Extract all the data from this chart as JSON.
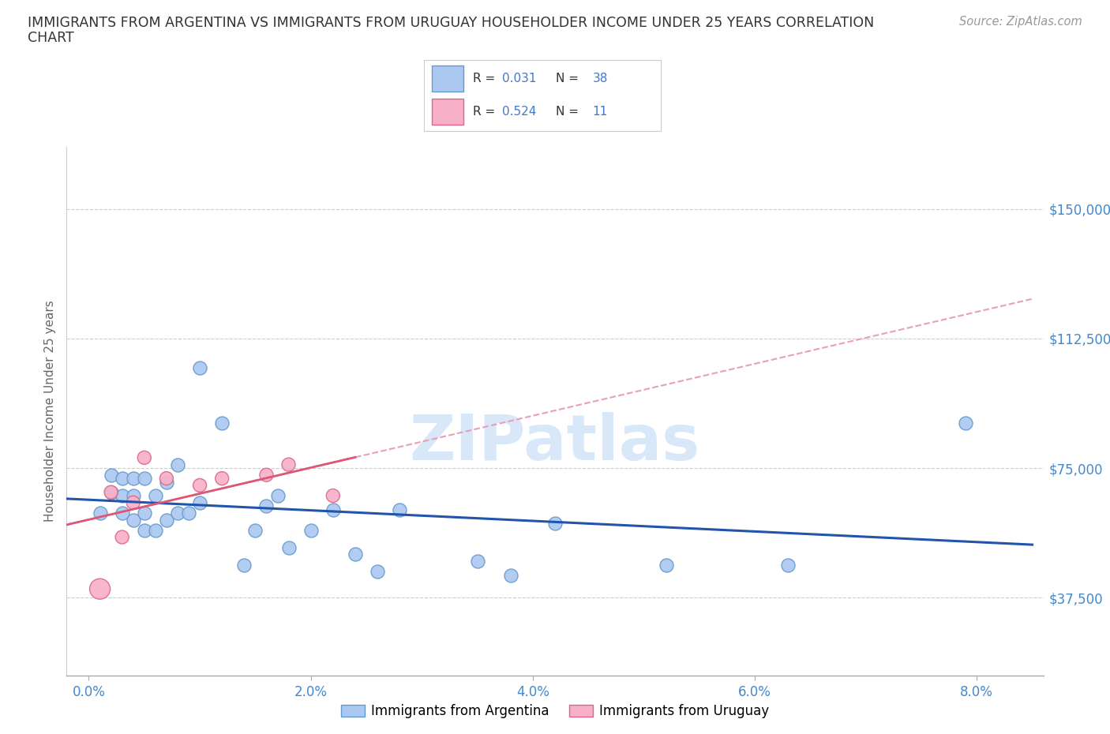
{
  "title_line1": "IMMIGRANTS FROM ARGENTINA VS IMMIGRANTS FROM URUGUAY HOUSEHOLDER INCOME UNDER 25 YEARS CORRELATION",
  "title_line2": "CHART",
  "source_text": "Source: ZipAtlas.com",
  "xlabel_ticks": [
    "0.0%",
    "2.0%",
    "4.0%",
    "6.0%",
    "8.0%"
  ],
  "xlabel_tick_vals": [
    0.0,
    0.02,
    0.04,
    0.06,
    0.08
  ],
  "ylabel": "Householder Income Under 25 years",
  "ylabel_ticks": [
    "$37,500",
    "$75,000",
    "$112,500",
    "$150,000"
  ],
  "ylabel_tick_vals": [
    37500,
    75000,
    112500,
    150000
  ],
  "ymin": 15000,
  "ymax": 168000,
  "xmin": -0.002,
  "xmax": 0.086,
  "argentina_color": "#aac8f0",
  "argentina_edge_color": "#6699cc",
  "uruguay_color": "#f8b0c8",
  "uruguay_edge_color": "#dd6688",
  "argentina_line_color": "#2255aa",
  "uruguay_solid_color": "#dd5577",
  "uruguay_dash_color": "#e8a0b8",
  "argentina_R": "0.031",
  "argentina_N": "38",
  "uruguay_R": "0.524",
  "uruguay_N": "11",
  "r_n_label_color": "#222222",
  "value_color": "#4477cc",
  "background_color": "#ffffff",
  "grid_color": "#cccccc",
  "axis_label_color": "#4488cc",
  "title_color": "#333333",
  "watermark_color": "#d8e8f8",
  "argentina_x": [
    0.001,
    0.002,
    0.002,
    0.003,
    0.003,
    0.003,
    0.004,
    0.004,
    0.004,
    0.005,
    0.005,
    0.005,
    0.006,
    0.006,
    0.007,
    0.007,
    0.008,
    0.008,
    0.009,
    0.01,
    0.01,
    0.012,
    0.014,
    0.015,
    0.016,
    0.017,
    0.018,
    0.02,
    0.022,
    0.024,
    0.026,
    0.028,
    0.035,
    0.038,
    0.042,
    0.052,
    0.063,
    0.079
  ],
  "argentina_y": [
    62000,
    68000,
    73000,
    62000,
    67000,
    72000,
    60000,
    67000,
    72000,
    57000,
    62000,
    72000,
    57000,
    67000,
    60000,
    71000,
    62000,
    76000,
    62000,
    104000,
    65000,
    88000,
    47000,
    57000,
    64000,
    67000,
    52000,
    57000,
    63000,
    50000,
    45000,
    63000,
    48000,
    44000,
    59000,
    47000,
    47000,
    88000
  ],
  "argentina_sizes": [
    150,
    150,
    150,
    150,
    150,
    150,
    150,
    150,
    150,
    150,
    150,
    150,
    150,
    150,
    150,
    150,
    150,
    150,
    150,
    150,
    150,
    150,
    150,
    150,
    150,
    150,
    150,
    150,
    150,
    150,
    150,
    150,
    150,
    150,
    150,
    150,
    150,
    150
  ],
  "uruguay_x": [
    0.001,
    0.002,
    0.003,
    0.004,
    0.005,
    0.007,
    0.01,
    0.012,
    0.016,
    0.018,
    0.022
  ],
  "uruguay_y": [
    40000,
    68000,
    55000,
    65000,
    78000,
    72000,
    70000,
    72000,
    73000,
    76000,
    67000
  ],
  "uruguay_sizes": [
    350,
    150,
    150,
    150,
    150,
    150,
    150,
    150,
    150,
    150,
    150
  ],
  "argentina_marker_size": 150,
  "uruguay_marker_size": 150
}
